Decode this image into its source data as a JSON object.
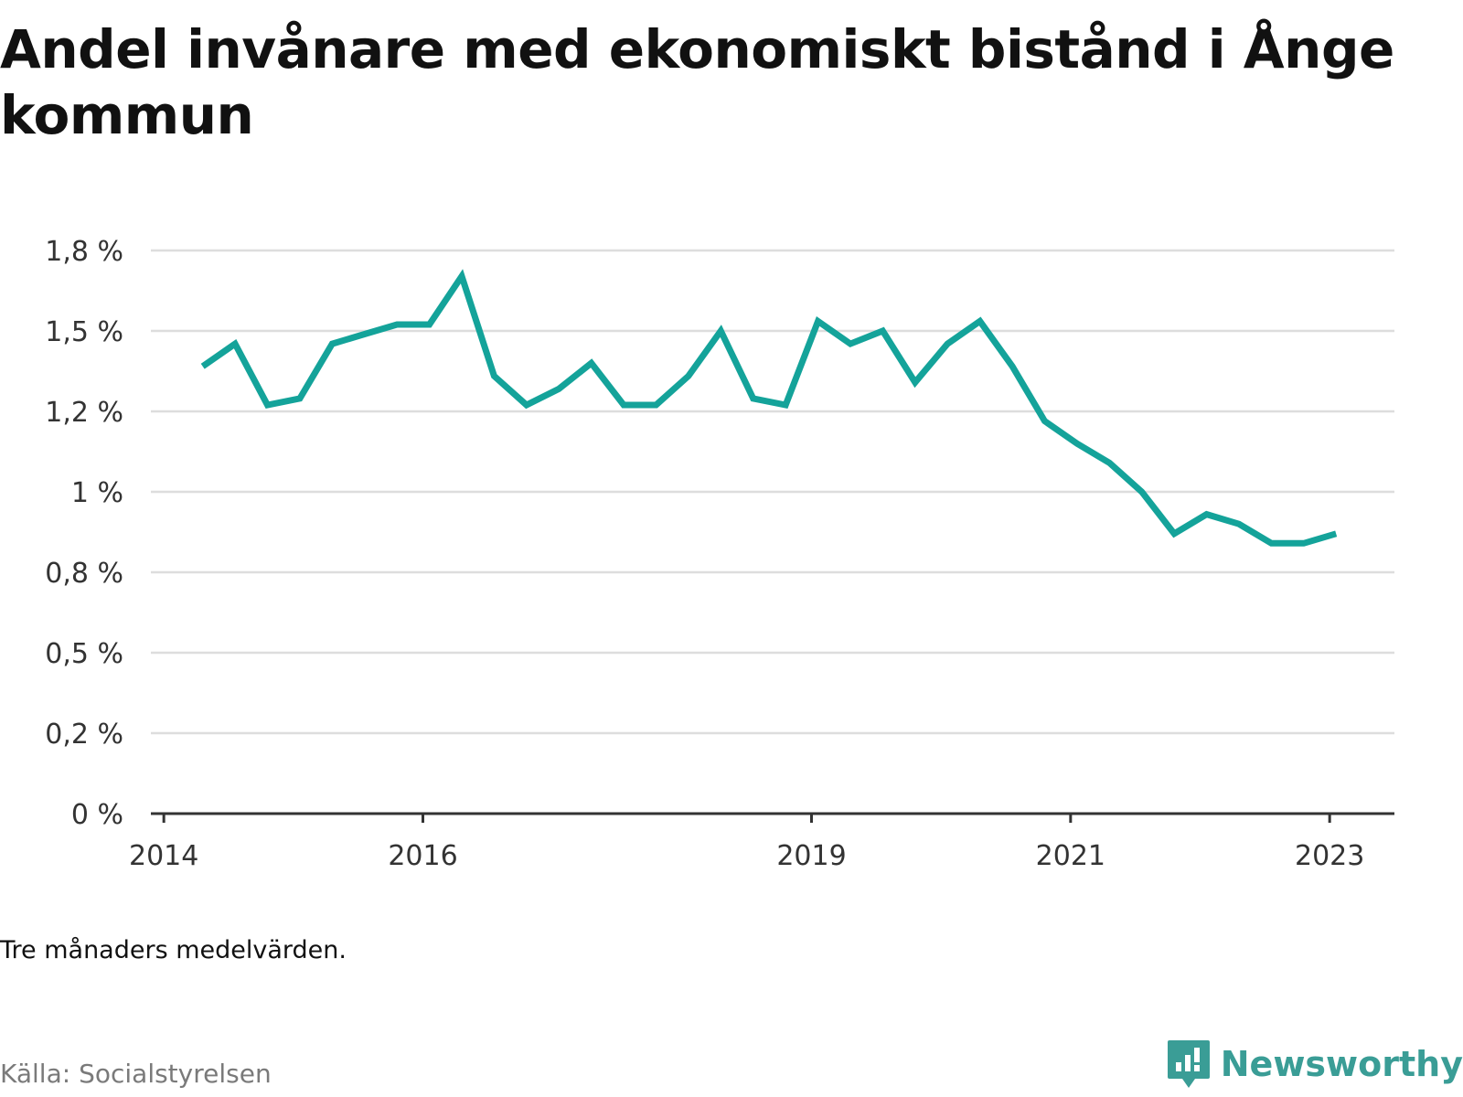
{
  "title": "Andel invånare med ekonomiskt bistånd i Ånge kommun",
  "note": "Tre månaders medelvärden.",
  "source": "Källa: Socialstyrelsen",
  "brand": {
    "name": "Newsworthy",
    "icon": "newsworthy-logo-icon"
  },
  "colors": {
    "line": "#14a39a",
    "grid": "#dddddd",
    "axis": "#333333",
    "brand": "#3a9d96"
  },
  "chart_data": {
    "type": "line",
    "title": "Andel invånare med ekonomiskt bistånd i Ånge kommun",
    "xlabel": "",
    "ylabel": "",
    "grid": true,
    "ylim": [
      0,
      1.75
    ],
    "y_ticks": [
      {
        "value": 0,
        "label": "0 %"
      },
      {
        "value": 0.25,
        "label": "0,2 %"
      },
      {
        "value": 0.5,
        "label": "0,5 %"
      },
      {
        "value": 0.75,
        "label": "0,8 %"
      },
      {
        "value": 1.0,
        "label": "1 %"
      },
      {
        "value": 1.25,
        "label": "1,2 %"
      },
      {
        "value": 1.5,
        "label": "1,5 %"
      },
      {
        "value": 1.75,
        "label": "1,8 %"
      }
    ],
    "x_ticks": [
      "2014",
      "2016",
      "2019",
      "2021",
      "2023"
    ],
    "x_tick_positions": [
      2014.0,
      2016.0,
      2019.0,
      2021.0,
      2023.0
    ],
    "xlim": [
      2013.9,
      2023.5
    ],
    "series": [
      {
        "x": [
          2014.3,
          2014.55,
          2014.8,
          2015.05,
          2015.3,
          2015.55,
          2015.8,
          2016.05,
          2016.3,
          2016.55,
          2016.8,
          2017.05,
          2017.3,
          2017.55,
          2017.8,
          2018.05,
          2018.3,
          2018.55,
          2018.8,
          2019.05,
          2019.3,
          2019.55,
          2019.8,
          2020.05,
          2020.3,
          2020.55,
          2020.8,
          2021.05,
          2021.3,
          2021.55,
          2021.8,
          2022.05,
          2022.3,
          2022.55,
          2022.8,
          2023.05
        ],
        "values": [
          1.39,
          1.46,
          1.27,
          1.29,
          1.46,
          1.49,
          1.52,
          1.52,
          1.67,
          1.36,
          1.27,
          1.32,
          1.4,
          1.27,
          1.27,
          1.36,
          1.5,
          1.29,
          1.27,
          1.53,
          1.46,
          1.5,
          1.34,
          1.46,
          1.53,
          1.39,
          1.22,
          1.15,
          1.09,
          1.0,
          0.87,
          0.93,
          0.9,
          0.84,
          0.84,
          0.87
        ]
      }
    ]
  }
}
